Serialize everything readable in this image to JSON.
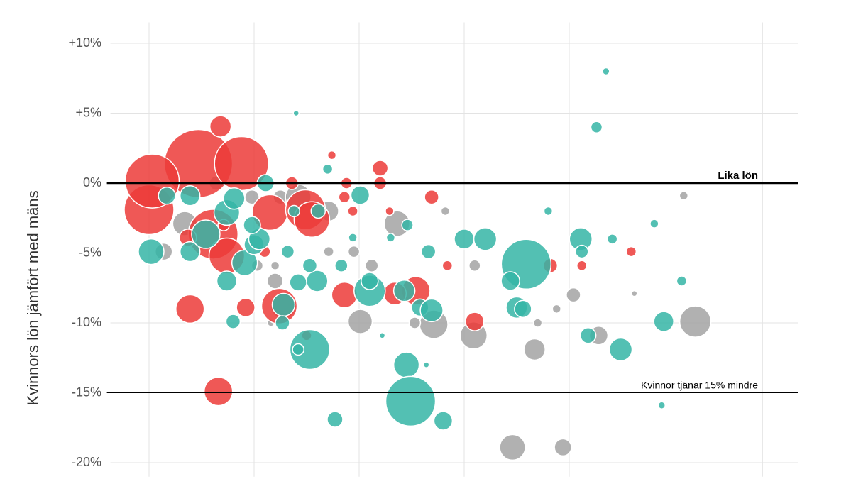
{
  "chart_data": {
    "type": "bubble",
    "ylabel": "Kvinnors lön jämfört med mäns",
    "xlim": [
      -0.3,
      6.1
    ],
    "xticks": [
      0,
      1,
      2,
      3,
      4,
      5.84
    ],
    "ylim": [
      -21,
      11.5
    ],
    "yticks": [
      {
        "value": 10,
        "label": "+10%"
      },
      {
        "value": 5,
        "label": "+5%"
      },
      {
        "value": 0,
        "label": "0%"
      },
      {
        "value": -5,
        "label": "-5%"
      },
      {
        "value": -10,
        "label": "-10%"
      },
      {
        "value": -15,
        "label": "-15%"
      },
      {
        "value": -20,
        "label": "-20%"
      }
    ],
    "grid": true,
    "reference_lines": [
      {
        "value": 0,
        "label": "Lika lön",
        "bold": true
      },
      {
        "value": -15,
        "label": "Kvinnor tjänar 15% mindre",
        "bold": false
      }
    ],
    "series": [
      {
        "color": "#a3a3a3",
        "x": [
          0.34,
          0.14,
          1.2,
          1.03,
          1.2,
          1.16,
          1.28,
          1.71,
          2.01,
          2.12,
          2.36,
          2.71,
          2.53,
          2.82,
          3.1,
          3.09,
          3.67,
          3.7,
          3.88,
          4.04,
          4.28,
          4.62,
          5.09,
          5.2,
          3.46,
          3.94,
          1.95,
          1.71,
          1.25,
          1.42,
          0.98,
          0.64
        ],
        "values": [
          -2.9,
          -4.9,
          -7,
          -5.9,
          -5.9,
          -10,
          -8.8,
          -2,
          -9.9,
          -5.9,
          -2.9,
          -10.1,
          -10,
          -2,
          -5.9,
          -10.9,
          -11.9,
          -10,
          -9,
          -8,
          -10.9,
          -7.9,
          -0.9,
          -9.9,
          -18.9,
          -18.9,
          -4.9,
          -4.9,
          -1,
          -1,
          -1,
          0
        ],
        "sizes": [
          17,
          12,
          11,
          8,
          6,
          5,
          18,
          14,
          17,
          9,
          18,
          20,
          8,
          6,
          8,
          19,
          15,
          6,
          6,
          10,
          13,
          4,
          6,
          22,
          18,
          12,
          8,
          7,
          10,
          18,
          10,
          10
        ]
      },
      {
        "color": "#ec3b38",
        "x": [
          0,
          0.47,
          0.88,
          0.03,
          0.68,
          0.61,
          0.74,
          1.15,
          1.49,
          1.55,
          0.39,
          0.66,
          1.24,
          0.92,
          1.86,
          2.2,
          2.2,
          1.74,
          2.69,
          2.54,
          2.34,
          3.1,
          2.84,
          3.82,
          4.12,
          4.59,
          1.5,
          1.88,
          1.86,
          1.94,
          2.29,
          1.36,
          1.1,
          0.71,
          0.37
        ],
        "values": [
          -1.9,
          1.4,
          1.4,
          0.15,
          4.06,
          -3.65,
          -5.2,
          -2.1,
          -1.9,
          -2.6,
          -9,
          -14.9,
          -8.8,
          -8.9,
          -8,
          1.07,
          0,
          2,
          -1,
          -7.7,
          -7.9,
          -9.9,
          -5.9,
          -5.9,
          -5.9,
          -4.9,
          -10.9,
          0,
          -1,
          -2,
          -2,
          0,
          -4.9,
          -3,
          -3.9
        ],
        "sizes": [
          35,
          48,
          38,
          38,
          15,
          35,
          25,
          25,
          28,
          25,
          20,
          20,
          25,
          13,
          18,
          11,
          9,
          6,
          10,
          20,
          16,
          13,
          7,
          10,
          7,
          7,
          7,
          8,
          8,
          7,
          6,
          9,
          8,
          8,
          12
        ]
      },
      {
        "color": "#35b5a6",
        "x": [
          0.02,
          0.39,
          0.54,
          0.74,
          0.81,
          0.91,
          1,
          0.74,
          0.8,
          1.28,
          1.27,
          1.42,
          1.53,
          1.42,
          1.6,
          1.53,
          1.7,
          1.4,
          1.83,
          2.01,
          2.1,
          2.1,
          2.45,
          2.49,
          2.8,
          1.77,
          2.43,
          2.58,
          2.69,
          2.66,
          2.46,
          2.3,
          3,
          3.2,
          3.59,
          3.44,
          3.5,
          3.56,
          3.8,
          4.11,
          4.12,
          4.41,
          4.26,
          4.35,
          4.18,
          4.49,
          4.81,
          4.9,
          5.07,
          4.88,
          2.64,
          2.22,
          1.05,
          0.98,
          0.17,
          0.39,
          1.11,
          1.38,
          1.61,
          1.32,
          1.94
        ],
        "values": [
          -4.9,
          -4.9,
          -3.65,
          -2.1,
          -1.1,
          -5.7,
          -4.4,
          -7,
          -9.9,
          -8.7,
          -10,
          -7.1,
          -11.9,
          -11.9,
          -7,
          -5.9,
          1,
          5,
          -5.9,
          -0.86,
          -7.7,
          -7,
          -13,
          -15.6,
          -17,
          -16.9,
          -7.7,
          -8.9,
          -9.1,
          -4.9,
          -3,
          -3.9,
          -4,
          -4,
          -5.8,
          -7,
          -8.9,
          -9,
          -2,
          -4,
          -4.9,
          -4,
          4,
          8,
          -10.9,
          -11.9,
          -2.9,
          -9.9,
          -7,
          -15.9,
          -13,
          -10.9,
          -4,
          -3,
          -0.9,
          -0.9,
          0,
          -2,
          -2,
          -4.9,
          -3.9
        ],
        "sizes": [
          18,
          14,
          20,
          18,
          15,
          18,
          14,
          14,
          10,
          16,
          10,
          12,
          28,
          8,
          15,
          10,
          7,
          4,
          9,
          13,
          22,
          12,
          18,
          35,
          13,
          11,
          15,
          12,
          16,
          10,
          8,
          6,
          14,
          16,
          35,
          13,
          15,
          12,
          6,
          16,
          9,
          7,
          8,
          5,
          11,
          16,
          6,
          14,
          7,
          5,
          4,
          4,
          15,
          12,
          12,
          14,
          12,
          8,
          10,
          9,
          6
        ]
      }
    ]
  }
}
